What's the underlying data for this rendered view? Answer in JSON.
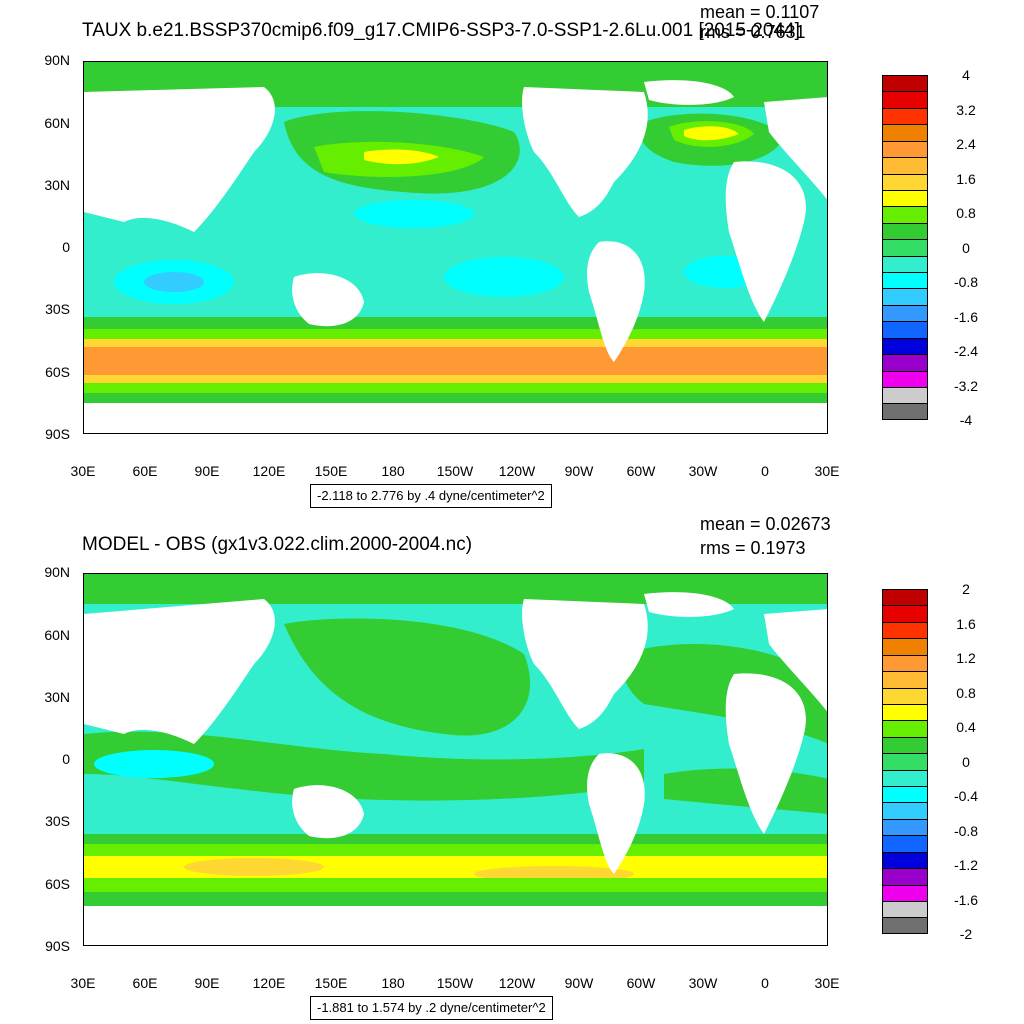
{
  "top": {
    "title": "TAUX b.e21.BSSP370cmip6.f09_g17.CMIP6-SSP3-7.0-SSP1-2.6Lu.001 [2015-2044]",
    "mean": "mean = 0.1107",
    "rms": "rms = 0.7631",
    "range": "-2.118 to 2.776 by .4 dyne/centimeter^2",
    "colorbar_labels": [
      "4",
      "3.2",
      "2.4",
      "1.6",
      "0.8",
      "0",
      "-0.8",
      "-1.6",
      "-2.4",
      "-3.2",
      "-4"
    ],
    "colorbar_colors": [
      "#c00000",
      "#e60000",
      "#ff3300",
      "#f08000",
      "#ff9933",
      "#ffbb33",
      "#ffd733",
      "#ffff00",
      "#66ee00",
      "#33cc33",
      "#33dd66",
      "#33eecc",
      "#00ffff",
      "#33ccff",
      "#3399ff",
      "#1166ff",
      "#0000dd",
      "#9900cc",
      "#ee00ee",
      "#cccccc",
      "#707070"
    ]
  },
  "bottom": {
    "title": "MODEL - OBS (gx1v3.022.clim.2000-2004.nc)",
    "mean": "mean = 0.02673",
    "rms": "rms = 0.1973",
    "range": "-1.881 to 1.574 by .2 dyne/centimeter^2",
    "colorbar_labels": [
      "2",
      "1.6",
      "1.2",
      "0.8",
      "0.4",
      "0",
      "-0.4",
      "-0.8",
      "-1.2",
      "-1.6",
      "-2"
    ],
    "colorbar_colors": [
      "#c00000",
      "#e60000",
      "#ff3300",
      "#f08000",
      "#ff9933",
      "#ffbb33",
      "#ffd733",
      "#ffff00",
      "#66ee00",
      "#33cc33",
      "#33dd66",
      "#33eecc",
      "#00ffff",
      "#33ccff",
      "#3399ff",
      "#1166ff",
      "#0000dd",
      "#9900cc",
      "#ee00ee",
      "#cccccc",
      "#707070"
    ]
  },
  "lat_labels": [
    "90N",
    "60N",
    "30N",
    "0",
    "30S",
    "60S",
    "90S"
  ],
  "lon_labels": [
    "30E",
    "60E",
    "90E",
    "120E",
    "150E",
    "180",
    "150W",
    "120W",
    "90W",
    "60W",
    "30W",
    "0",
    "30E"
  ],
  "colors": {
    "ocean_green": "#33cc33",
    "ocean_cyan": "#33eecc",
    "light_cyan": "#00ffff",
    "light_green": "#66ee00",
    "yellow": "#ffff00",
    "gold": "#ffd733",
    "orange": "#ff9933",
    "land": "#ffffff"
  }
}
